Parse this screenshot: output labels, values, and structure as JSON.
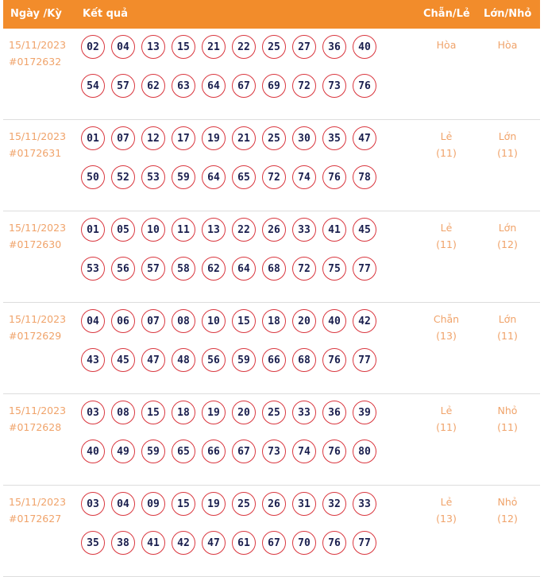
{
  "header": {
    "date_col": "Ngày /Kỳ",
    "result_col": "Kết quả",
    "even_odd_col": "Chẵn/Lẻ",
    "big_small_col": "Lớn/Nhỏ"
  },
  "colors": {
    "header_bg": "#f28c2b",
    "ball_border": "#d9363e",
    "text_accent": "#f0a36a"
  },
  "rows": [
    {
      "date": "15/11/2023",
      "draw": "#0172632",
      "numbers": [
        "02",
        "04",
        "13",
        "15",
        "21",
        "22",
        "25",
        "27",
        "36",
        "40",
        "54",
        "57",
        "62",
        "63",
        "64",
        "67",
        "69",
        "72",
        "73",
        "76"
      ],
      "even_odd": "Hòa",
      "even_odd_count": "",
      "big_small": "Hòa",
      "big_small_count": ""
    },
    {
      "date": "15/11/2023",
      "draw": "#0172631",
      "numbers": [
        "01",
        "07",
        "12",
        "17",
        "19",
        "21",
        "25",
        "30",
        "35",
        "47",
        "50",
        "52",
        "53",
        "59",
        "64",
        "65",
        "72",
        "74",
        "76",
        "78"
      ],
      "even_odd": "Lẻ",
      "even_odd_count": "(11)",
      "big_small": "Lớn",
      "big_small_count": "(11)"
    },
    {
      "date": "15/11/2023",
      "draw": "#0172630",
      "numbers": [
        "01",
        "05",
        "10",
        "11",
        "13",
        "22",
        "26",
        "33",
        "41",
        "45",
        "53",
        "56",
        "57",
        "58",
        "62",
        "64",
        "68",
        "72",
        "75",
        "77"
      ],
      "even_odd": "Lẻ",
      "even_odd_count": "(11)",
      "big_small": "Lớn",
      "big_small_count": "(12)"
    },
    {
      "date": "15/11/2023",
      "draw": "#0172629",
      "numbers": [
        "04",
        "06",
        "07",
        "08",
        "10",
        "15",
        "18",
        "20",
        "40",
        "42",
        "43",
        "45",
        "47",
        "48",
        "56",
        "59",
        "66",
        "68",
        "76",
        "77"
      ],
      "even_odd": "Chẵn",
      "even_odd_count": "(13)",
      "big_small": "Lớn",
      "big_small_count": "(11)"
    },
    {
      "date": "15/11/2023",
      "draw": "#0172628",
      "numbers": [
        "03",
        "08",
        "15",
        "18",
        "19",
        "20",
        "25",
        "33",
        "36",
        "39",
        "40",
        "49",
        "59",
        "65",
        "66",
        "67",
        "73",
        "74",
        "76",
        "80"
      ],
      "even_odd": "Lẻ",
      "even_odd_count": "(11)",
      "big_small": "Nhỏ",
      "big_small_count": "(11)"
    },
    {
      "date": "15/11/2023",
      "draw": "#0172627",
      "numbers": [
        "03",
        "04",
        "09",
        "15",
        "19",
        "25",
        "26",
        "31",
        "32",
        "33",
        "35",
        "38",
        "41",
        "42",
        "47",
        "61",
        "67",
        "70",
        "76",
        "77"
      ],
      "even_odd": "Lẻ",
      "even_odd_count": "(13)",
      "big_small": "Nhỏ",
      "big_small_count": "(12)"
    }
  ]
}
